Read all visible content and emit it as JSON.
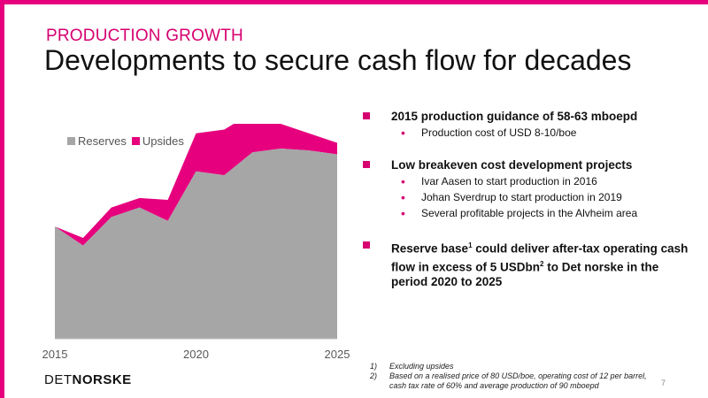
{
  "header": {
    "kicker": "PRODUCTION GROWTH",
    "title": "Developments to secure cash flow for decades"
  },
  "colors": {
    "accent": "#e6007e",
    "reserves": "#a6a6a6",
    "upsides": "#e6007e"
  },
  "chart_data": {
    "type": "area",
    "stacked": true,
    "x": [
      2015,
      2016,
      2017,
      2018,
      2019,
      2020,
      2021,
      2022,
      2023,
      2024,
      2025
    ],
    "series": [
      {
        "name": "Reserves",
        "values": [
          59,
          49,
          64,
          69,
          62,
          88,
          86,
          98,
          100,
          99,
          97
        ]
      },
      {
        "name": "Upsides",
        "values": [
          0,
          4,
          5,
          5,
          11,
          20,
          24,
          21,
          13,
          9,
          6
        ]
      }
    ],
    "xticks": [
      "2015",
      "2020",
      "2025"
    ],
    "legend": {
      "position": "top-left",
      "items": [
        "Reserves",
        "Upsides"
      ]
    },
    "grid": false
  },
  "bullets": [
    {
      "text": "2015 production guidance of 58-63 mboepd",
      "subs": [
        "Production cost of USD 8-10/boe"
      ]
    },
    {
      "text": "Low breakeven cost development projects",
      "subs": [
        "Ivar Aasen to start production in 2016",
        "Johan Sverdrup to start production in 2019",
        "Several profitable projects in the Alvheim area"
      ]
    },
    {
      "text_a": "Reserve base",
      "sup_a": "1",
      "text_b": " could deliver after-tax operating cash flow in excess of 5 USDbn",
      "sup_b": "2",
      "text_c": " to Det norske in the period 2020 to 2025"
    }
  ],
  "footnotes": [
    {
      "num": "1)",
      "text": "Excluding upsides"
    },
    {
      "num": "2)",
      "text": "Based on a realised price of 80 USD/boe, operating cost of 12 per barrel, cash tax rate of 60% and average production of 90 mboepd"
    }
  ],
  "logo": {
    "part1": "DET",
    "part2": "NORSKE"
  },
  "page_number": "7"
}
